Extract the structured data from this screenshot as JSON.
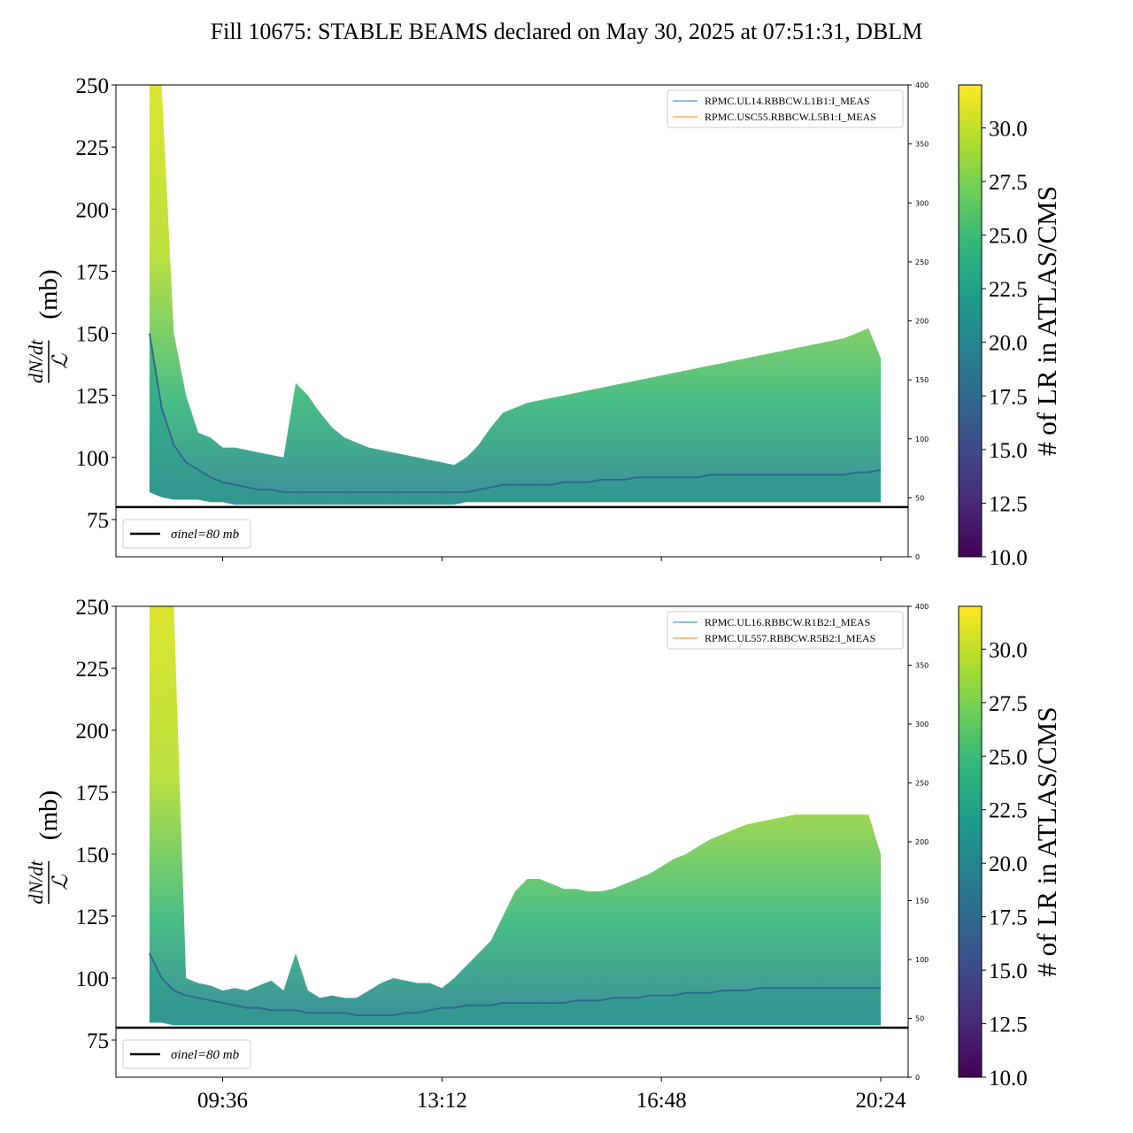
{
  "figure_title": "Fill 10675: STABLE BEAMS declared on May 30, 2025 at 07:51:31, DBLM",
  "colors": {
    "viridis": [
      "#440154",
      "#482878",
      "#3e4989",
      "#31688e",
      "#26828e",
      "#1f9e89",
      "#35b779",
      "#6ece58",
      "#b5de2b",
      "#fde725"
    ],
    "legend_line_1": "#1f77b4",
    "legend_line_2": "#ff7f0e",
    "reference_line": "#000000"
  },
  "chart_data": [
    {
      "type": "area",
      "panel": "top",
      "ylabel_num": "dN/dt",
      "ylabel_den": "ℒ",
      "ylabel_unit": "(mb)",
      "ylim": [
        60,
        250
      ],
      "yticks": [
        75,
        100,
        125,
        150,
        175,
        200,
        225,
        250
      ],
      "right_ylim": [
        0,
        400
      ],
      "right_yticks": [
        0,
        50,
        100,
        150,
        200,
        250,
        300,
        350,
        400
      ],
      "x_range": [
        "07:51",
        "20:51"
      ],
      "xticks": [
        "09:36",
        "13:12",
        "16:48",
        "20:24"
      ],
      "xtick_labels_shown": false,
      "legend_top_right": [
        "RPMC.UL14.RBBCW.L1B1:I_MEAS",
        "RPMC.USC55.RBBCW.L5B1:I_MEAS"
      ],
      "reference": {
        "value": 80,
        "label": "σinel=80 mb"
      },
      "colorbar": {
        "label": "# of LR in ATLAS/CMS",
        "range": [
          10,
          32
        ],
        "ticks": [
          "10.0",
          "12.5",
          "15.0",
          "17.5",
          "20.0",
          "22.5",
          "25.0",
          "27.5",
          "30.0"
        ]
      },
      "series": [
        {
          "x": [
            "08:24",
            "08:36",
            "08:48",
            "09:00",
            "09:12",
            "09:24",
            "09:36",
            "09:48",
            "10:00",
            "10:12",
            "10:24",
            "10:36",
            "10:48",
            "11:00",
            "11:12",
            "11:24",
            "11:36",
            "11:48",
            "12:00",
            "12:12",
            "12:24",
            "12:36",
            "12:48",
            "13:00",
            "13:12",
            "13:24",
            "13:36",
            "13:48",
            "14:00",
            "14:12",
            "14:24",
            "14:36",
            "14:48",
            "15:00",
            "15:12",
            "15:24",
            "15:36",
            "15:48",
            "16:00",
            "16:12",
            "16:24",
            "16:36",
            "16:48",
            "17:00",
            "17:12",
            "17:24",
            "17:36",
            "17:48",
            "18:00",
            "18:12",
            "18:24",
            "18:36",
            "18:48",
            "19:00",
            "19:12",
            "19:24",
            "19:36",
            "19:48",
            "20:00",
            "20:12",
            "20:24"
          ],
          "low": [
            86,
            84,
            83,
            83,
            83,
            82,
            82,
            81,
            81,
            81,
            81,
            81,
            81,
            81,
            81,
            81,
            81,
            81,
            81,
            81,
            81,
            81,
            81,
            81,
            81,
            81,
            82,
            82,
            82,
            82,
            82,
            82,
            82,
            82,
            82,
            82,
            82,
            82,
            82,
            82,
            82,
            82,
            82,
            82,
            82,
            82,
            82,
            82,
            82,
            82,
            82,
            82,
            82,
            82,
            82,
            82,
            82,
            82,
            82,
            82,
            82
          ],
          "mid": [
            150,
            120,
            105,
            98,
            95,
            92,
            90,
            89,
            88,
            87,
            87,
            86,
            86,
            86,
            86,
            86,
            86,
            86,
            86,
            86,
            86,
            86,
            86,
            86,
            86,
            86,
            86,
            87,
            88,
            89,
            89,
            89,
            89,
            89,
            90,
            90,
            90,
            91,
            91,
            91,
            92,
            92,
            92,
            92,
            92,
            92,
            93,
            93,
            93,
            93,
            93,
            93,
            93,
            93,
            93,
            93,
            93,
            93,
            94,
            94,
            95
          ],
          "high": [
            250,
            250,
            150,
            125,
            110,
            108,
            104,
            104,
            103,
            102,
            101,
            100,
            130,
            125,
            118,
            112,
            108,
            106,
            104,
            103,
            102,
            101,
            100,
            99,
            98,
            97,
            100,
            105,
            112,
            118,
            120,
            122,
            123,
            124,
            125,
            126,
            127,
            128,
            129,
            130,
            131,
            132,
            133,
            134,
            135,
            136,
            137,
            138,
            139,
            140,
            141,
            142,
            143,
            144,
            145,
            146,
            147,
            148,
            150,
            152,
            140
          ]
        }
      ]
    },
    {
      "type": "area",
      "panel": "bottom",
      "ylabel_num": "dN/dt",
      "ylabel_den": "ℒ",
      "ylabel_unit": "(mb)",
      "ylim": [
        60,
        250
      ],
      "yticks": [
        75,
        100,
        125,
        150,
        175,
        200,
        225,
        250
      ],
      "right_ylim": [
        0,
        400
      ],
      "right_yticks": [
        0,
        50,
        100,
        150,
        200,
        250,
        300,
        350,
        400
      ],
      "x_range": [
        "07:51",
        "20:51"
      ],
      "xticks": [
        "09:36",
        "13:12",
        "16:48",
        "20:24"
      ],
      "xtick_labels_shown": true,
      "legend_top_right": [
        "RPMC.UL16.RBBCW.R1B2:I_MEAS",
        "RPMC.UL557.RBBCW.R5B2:I_MEAS"
      ],
      "reference": {
        "value": 80,
        "label": "σinel=80 mb"
      },
      "colorbar": {
        "label": "# of LR in ATLAS/CMS",
        "range": [
          10,
          32
        ],
        "ticks": [
          "10.0",
          "12.5",
          "15.0",
          "17.5",
          "20.0",
          "22.5",
          "25.0",
          "27.5",
          "30.0"
        ]
      },
      "series": [
        {
          "x": [
            "08:24",
            "08:36",
            "08:48",
            "09:00",
            "09:12",
            "09:24",
            "09:36",
            "09:48",
            "10:00",
            "10:12",
            "10:24",
            "10:36",
            "10:48",
            "11:00",
            "11:12",
            "11:24",
            "11:36",
            "11:48",
            "12:00",
            "12:12",
            "12:24",
            "12:36",
            "12:48",
            "13:00",
            "13:12",
            "13:24",
            "13:36",
            "13:48",
            "14:00",
            "14:12",
            "14:24",
            "14:36",
            "14:48",
            "15:00",
            "15:12",
            "15:24",
            "15:36",
            "15:48",
            "16:00",
            "16:12",
            "16:24",
            "16:36",
            "16:48",
            "17:00",
            "17:12",
            "17:24",
            "17:36",
            "17:48",
            "18:00",
            "18:12",
            "18:24",
            "18:36",
            "18:48",
            "19:00",
            "19:12",
            "19:24",
            "19:36",
            "19:48",
            "20:00",
            "20:12",
            "20:24"
          ],
          "low": [
            82,
            82,
            81,
            81,
            81,
            81,
            81,
            81,
            81,
            81,
            81,
            81,
            81,
            81,
            81,
            81,
            81,
            81,
            81,
            81,
            81,
            81,
            81,
            81,
            81,
            81,
            81,
            81,
            81,
            81,
            81,
            81,
            81,
            81,
            81,
            81,
            81,
            81,
            81,
            81,
            81,
            81,
            81,
            81,
            81,
            81,
            81,
            81,
            81,
            81,
            81,
            81,
            81,
            81,
            81,
            81,
            81,
            81,
            81,
            81,
            81
          ],
          "mid": [
            110,
            100,
            95,
            93,
            92,
            91,
            90,
            89,
            88,
            88,
            87,
            87,
            87,
            86,
            86,
            86,
            86,
            85,
            85,
            85,
            85,
            86,
            86,
            87,
            88,
            88,
            89,
            89,
            89,
            90,
            90,
            90,
            90,
            90,
            90,
            91,
            91,
            91,
            92,
            92,
            92,
            93,
            93,
            93,
            94,
            94,
            94,
            95,
            95,
            95,
            96,
            96,
            96,
            96,
            96,
            96,
            96,
            96,
            96,
            96,
            96
          ],
          "high": [
            250,
            250,
            250,
            100,
            98,
            97,
            95,
            96,
            95,
            97,
            99,
            95,
            110,
            95,
            92,
            93,
            92,
            92,
            95,
            98,
            100,
            99,
            98,
            98,
            96,
            100,
            105,
            110,
            115,
            125,
            135,
            140,
            140,
            138,
            136,
            136,
            135,
            135,
            136,
            138,
            140,
            142,
            145,
            148,
            150,
            153,
            156,
            158,
            160,
            162,
            163,
            164,
            165,
            166,
            166,
            166,
            166,
            166,
            166,
            166,
            150
          ]
        }
      ]
    }
  ]
}
